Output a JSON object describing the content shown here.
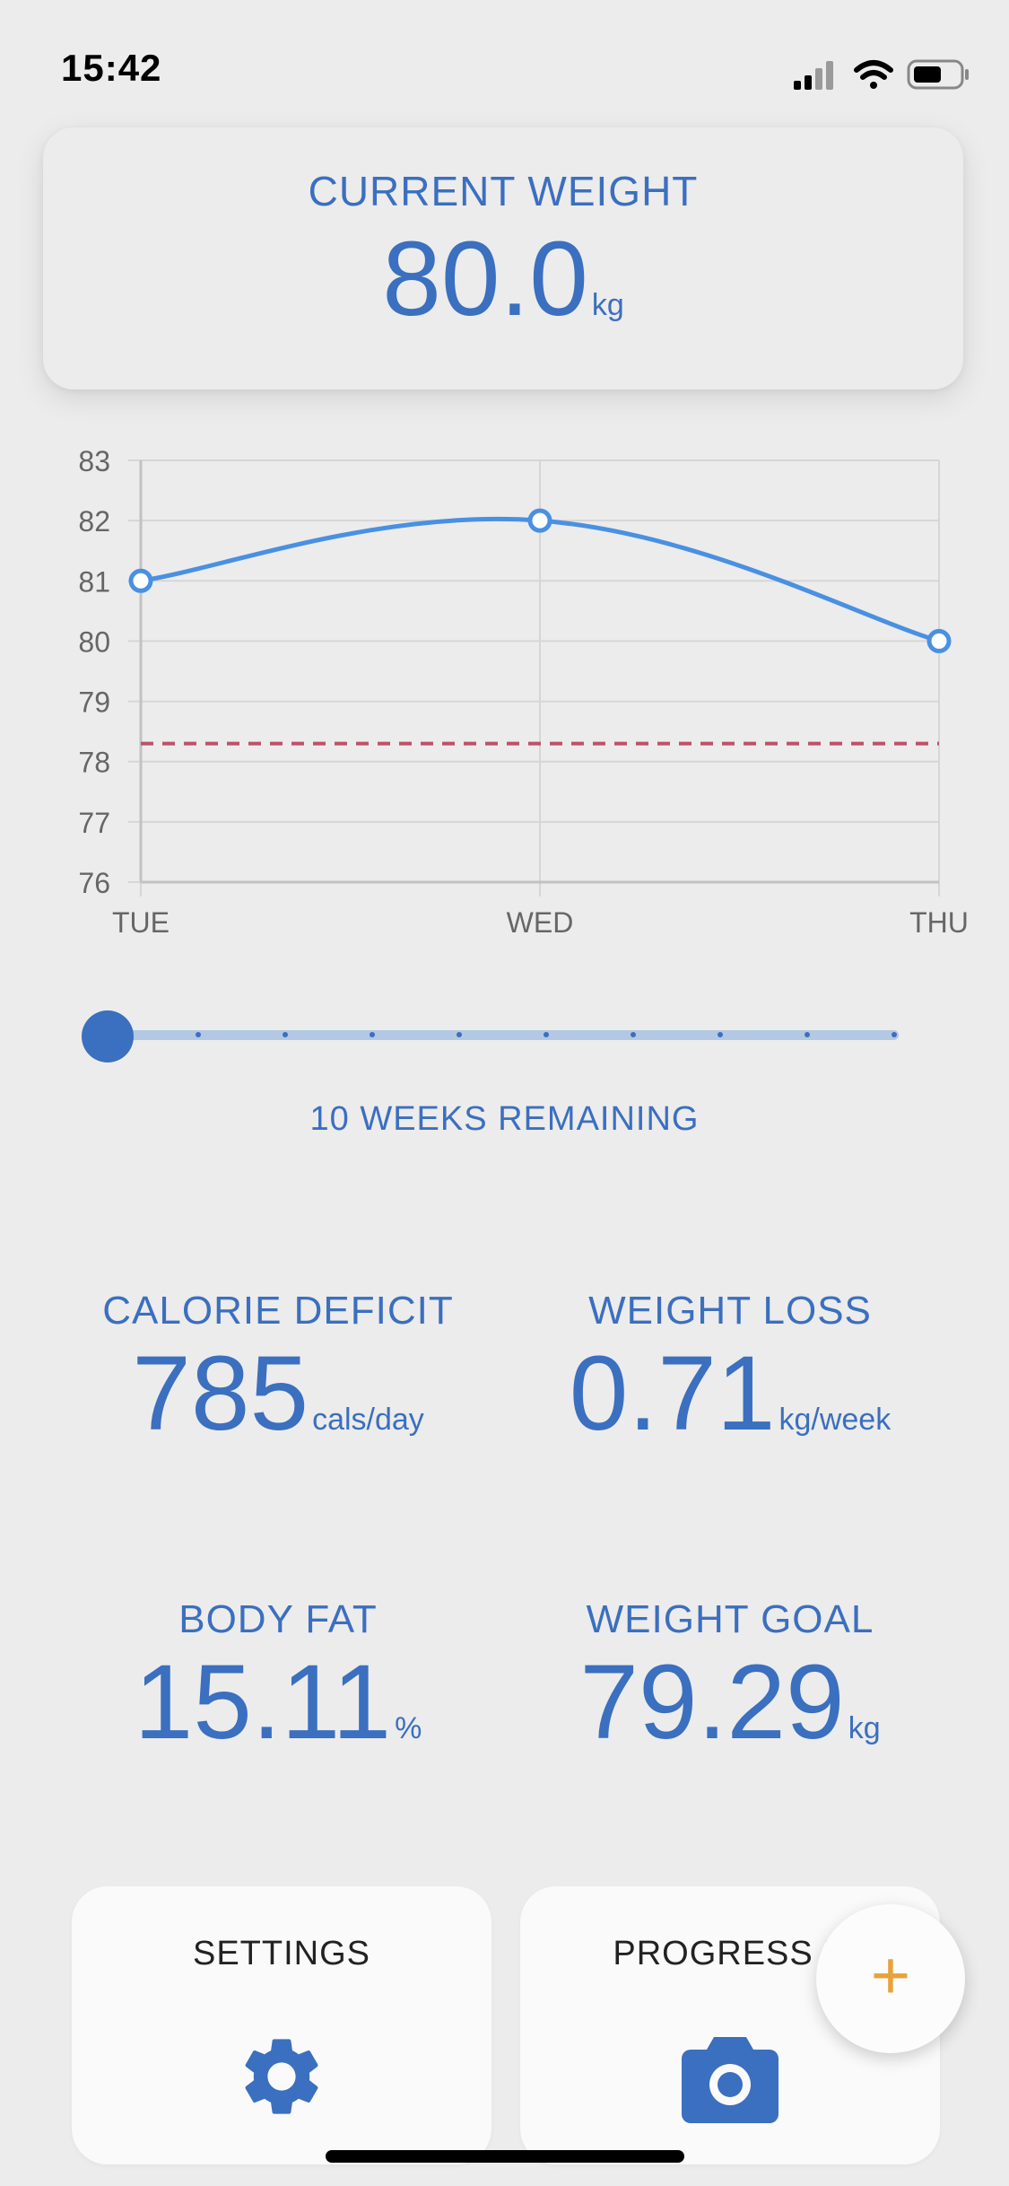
{
  "status_bar": {
    "time": "15:42"
  },
  "current_weight": {
    "title": "CURRENT WEIGHT",
    "value": "80.0",
    "unit": "kg"
  },
  "chart_data": {
    "type": "line",
    "categories": [
      "TUE",
      "WED",
      "THU"
    ],
    "series": [
      {
        "values": [
          81,
          82,
          80
        ],
        "color": "#4a90e2"
      }
    ],
    "goal_line": 78.3,
    "goal_color": "#c0506a",
    "ylim": [
      76,
      83
    ],
    "y_ticks": [
      83,
      82,
      81,
      80,
      79,
      78,
      77,
      76
    ],
    "grid": true
  },
  "slider": {
    "label": "10 WEEKS REMAINING",
    "value": 0
  },
  "stats": {
    "calorie_deficit": {
      "label": "CALORIE DEFICIT",
      "value": "785",
      "unit": "cals/day"
    },
    "weight_loss": {
      "label": "WEIGHT LOSS",
      "value": "0.71",
      "unit": "kg/week"
    },
    "body_fat": {
      "label": "BODY FAT",
      "value": "15.11",
      "unit": "%"
    },
    "weight_goal": {
      "label": "WEIGHT GOAL",
      "value": "79.29",
      "unit": "kg"
    }
  },
  "buttons": {
    "settings": {
      "label": "SETTINGS",
      "icon": "gear-icon"
    },
    "progress_photos": {
      "label": "PROGRESS P",
      "icon": "camera-icon"
    },
    "add": {
      "label": "+",
      "icon": "plus-icon"
    }
  },
  "colors": {
    "accent": "#3b6fbf",
    "background": "#ececec",
    "fab_plus": "#e8a23c"
  }
}
